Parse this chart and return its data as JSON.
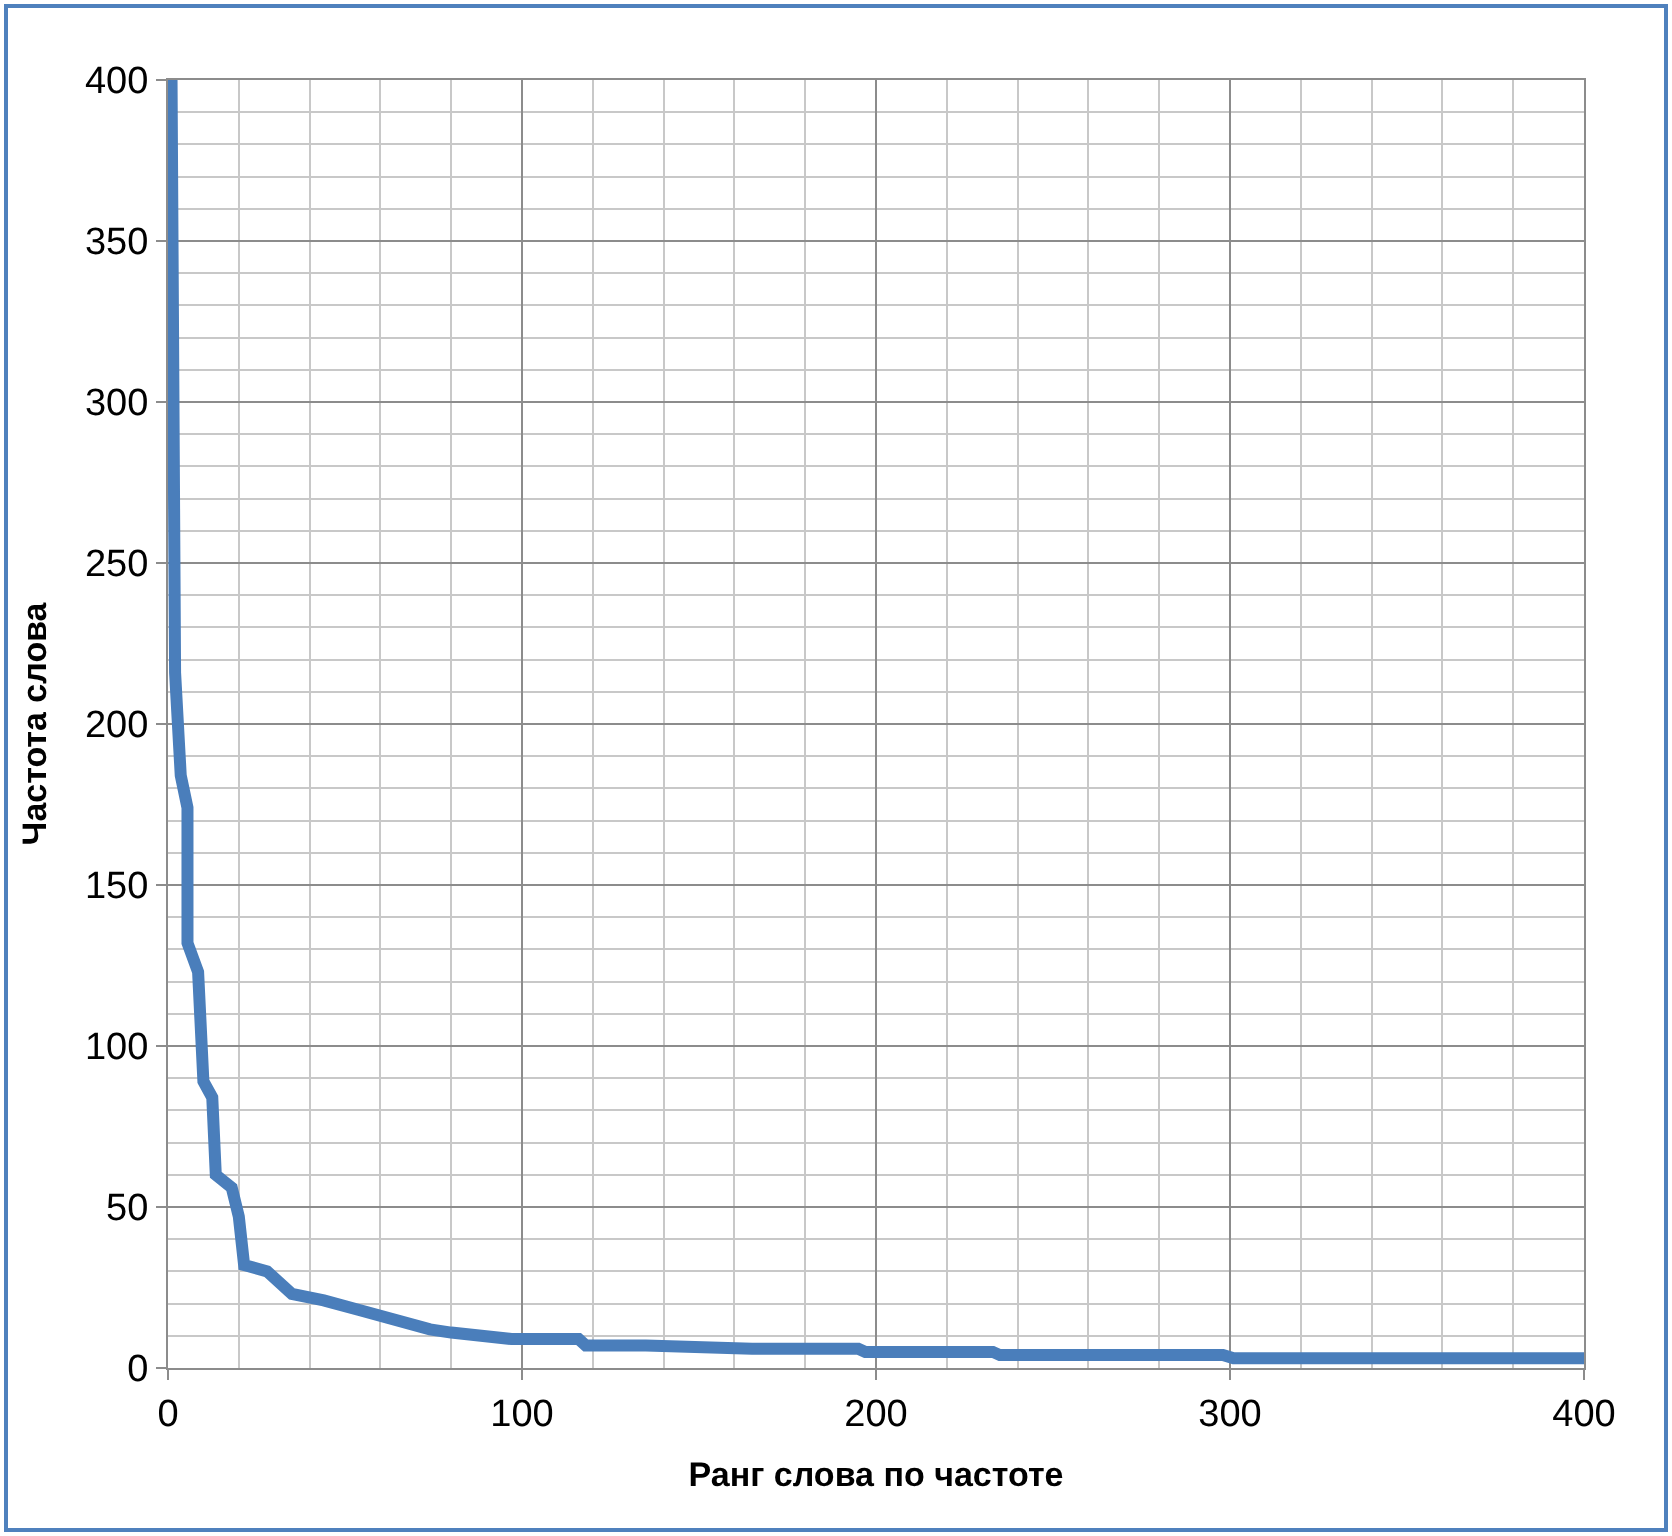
{
  "chart_data": {
    "type": "line",
    "xlabel": "Ранг слова по частоте",
    "ylabel": "Частота слова",
    "x": [
      1,
      2,
      3.6,
      5.5,
      5.5,
      8.5,
      10,
      12.5,
      13.5,
      18,
      20,
      21.5,
      28,
      35,
      44,
      54,
      74,
      80,
      97,
      116,
      118,
      135,
      165,
      195,
      197,
      233,
      235,
      298,
      301,
      400
    ],
    "series": [
      {
        "color": "#4a7ebb",
        "values": [
          400,
          216,
          184,
          174,
          132,
          123,
          89,
          84,
          60,
          56,
          47,
          32,
          30,
          23,
          21,
          18,
          12,
          11,
          9,
          9,
          7,
          7,
          6,
          6,
          5,
          5,
          4,
          4,
          3,
          3
        ]
      }
    ],
    "xlim": [
      0,
      400
    ],
    "xticks": [
      0,
      100,
      200,
      300,
      400
    ],
    "ylim": [
      0,
      400
    ],
    "yticks": [
      0,
      50,
      100,
      150,
      200,
      250,
      300,
      350,
      400
    ],
    "grid": true,
    "marker": "none",
    "line_style": "solid"
  }
}
